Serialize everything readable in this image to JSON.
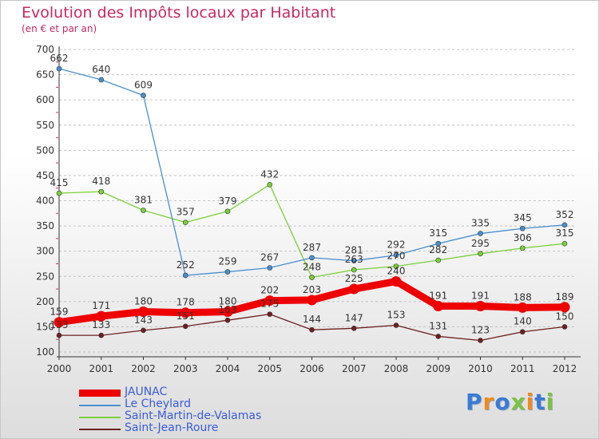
{
  "header": {
    "title": "Evolution des Impôts locaux par Habitant",
    "subtitle": "(en € et par an)"
  },
  "logo": {
    "text": "Proxiti",
    "colors": [
      "#3a7bd5",
      "#f08a1c",
      "#3a7bd5",
      "#7cc243",
      "#f08a1c",
      "#3a7bd5",
      "#7cc243"
    ]
  },
  "chart_data": {
    "type": "line",
    "title": "Evolution des Impôts locaux par Habitant",
    "subtitle": "(en € et par an)",
    "x": [
      "2000",
      "2001",
      "2002",
      "2003",
      "2004",
      "2005",
      "2006",
      "2007",
      "2008",
      "2009",
      "2010",
      "2011",
      "2012"
    ],
    "ylim": [
      100,
      700
    ],
    "yticks": [
      100,
      150,
      200,
      250,
      300,
      350,
      400,
      450,
      500,
      550,
      600,
      650,
      700
    ],
    "grid": "horizontal dashed",
    "legend_position": "bottom-left",
    "series": [
      {
        "name": "JAUNAC",
        "color": "#ee0000",
        "values": [
          159,
          171,
          180,
          178,
          180,
          202,
          203,
          225,
          240,
          191,
          191,
          188,
          189
        ]
      },
      {
        "name": "Le Cheylard",
        "color": "#4a8fd0",
        "values": [
          662,
          640,
          609,
          252,
          259,
          267,
          287,
          281,
          292,
          315,
          335,
          345,
          352
        ]
      },
      {
        "name": "Saint-Martin-de-Valamas",
        "color": "#7ad13a",
        "values": [
          415,
          418,
          381,
          357,
          379,
          432,
          248,
          263,
          270,
          282,
          295,
          306,
          315
        ]
      },
      {
        "name": "Saint-Jean-Roure",
        "color": "#6e1f1f",
        "values": [
          133,
          133,
          143,
          151,
          163,
          175,
          144,
          147,
          153,
          131,
          123,
          140,
          150
        ]
      }
    ]
  }
}
